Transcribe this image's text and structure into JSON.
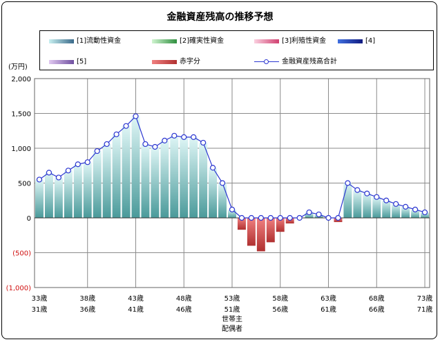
{
  "title": "金融資産残高の推移予想",
  "y_unit": "(万円)",
  "colors": {
    "bar_pos_top": "#dff6f6",
    "bar_pos_bottom": "#4a9a9a",
    "bar_neg_top": "#f08080",
    "bar_neg_bottom": "#b03030",
    "line": "#2a35d0",
    "neg_tick": "#d01010"
  },
  "legend": [
    {
      "label": "[1]流動性資金",
      "swatch": [
        "#c8f0f0",
        "#3a6a8a"
      ]
    },
    {
      "label": "[2]確実性資金",
      "swatch": [
        "#d0f5d0",
        "#2f8f3f"
      ]
    },
    {
      "label": "[3]利殖性資金",
      "swatch": [
        "#fbd0e0",
        "#d04070"
      ]
    },
    {
      "label": "[4]",
      "swatch": [
        "#4070e0",
        "#101a80"
      ]
    },
    {
      "label": "[5]",
      "swatch": [
        "#e0c8f0",
        "#7050a0"
      ]
    },
    {
      "label": "赤字分",
      "swatch": [
        "#f08080",
        "#b03030"
      ]
    },
    {
      "label": "金融資産残高合計",
      "swatch": "line"
    }
  ],
  "chart_data": {
    "type": "bar",
    "title": "金融資産残高の推移予想",
    "ylabel": "(万円)",
    "ylim": [
      -1000,
      2000
    ],
    "yticks": [
      2000,
      1500,
      1000,
      500,
      0,
      -500,
      -1000
    ],
    "ytick_labels": [
      "2,000",
      "1,500",
      "1,000",
      "500",
      "0",
      "(500)",
      "(1,000)"
    ],
    "xtick_labels": [
      {
        "row1": "33歳",
        "row2": "31歳"
      },
      {
        "row1": "38歳",
        "row2": "36歳"
      },
      {
        "row1": "43歳",
        "row2": "41歳"
      },
      {
        "row1": "48歳",
        "row2": "46歳"
      },
      {
        "row1": "53歳",
        "row2": "51歳"
      },
      {
        "row1": "58歳",
        "row2": "56歳"
      },
      {
        "row1": "63歳",
        "row2": "61歳"
      },
      {
        "row1": "68歳",
        "row2": "66歳"
      },
      {
        "row1": "73歳",
        "row2": "71歳"
      }
    ],
    "x_axis_caption": [
      "世帯主",
      "配偶者"
    ],
    "grid": true,
    "legend_position": "top",
    "series": [
      {
        "name": "[1]流動性資金",
        "values": [
          550,
          650,
          580,
          680,
          770,
          800,
          960,
          1060,
          1200,
          1320,
          1460,
          1060,
          1020,
          1110,
          1180,
          1160,
          1160,
          1080,
          720,
          500,
          120,
          0,
          0,
          0,
          0,
          0,
          0,
          0,
          80,
          50,
          0,
          0,
          500,
          400,
          350,
          300,
          250,
          200,
          160,
          120,
          80
        ]
      },
      {
        "name": "赤字分",
        "values": [
          0,
          0,
          0,
          0,
          0,
          0,
          0,
          0,
          0,
          0,
          0,
          0,
          0,
          0,
          0,
          0,
          0,
          0,
          0,
          0,
          0,
          -170,
          -400,
          -480,
          -350,
          -200,
          -80,
          0,
          0,
          0,
          0,
          -60,
          0,
          0,
          0,
          0,
          0,
          0,
          0,
          0,
          0
        ]
      },
      {
        "name": "金融資産残高合計",
        "values": [
          550,
          650,
          580,
          680,
          770,
          800,
          960,
          1060,
          1200,
          1320,
          1460,
          1060,
          1020,
          1110,
          1180,
          1160,
          1160,
          1080,
          720,
          500,
          120,
          0,
          0,
          0,
          0,
          0,
          0,
          0,
          80,
          50,
          0,
          0,
          500,
          400,
          350,
          300,
          250,
          200,
          160,
          120,
          80
        ]
      }
    ]
  }
}
